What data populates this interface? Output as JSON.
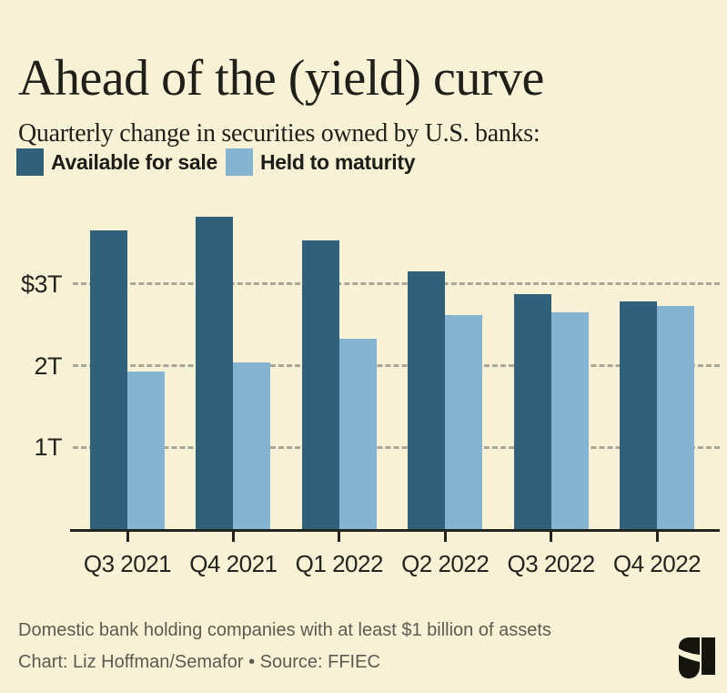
{
  "header": {
    "title": "Ahead of the (yield) curve",
    "subtitle": "Quarterly change in securities owned by U.S. banks:"
  },
  "chart_data": {
    "type": "bar",
    "categories": [
      "Q3 2021",
      "Q4 2021",
      "Q1 2022",
      "Q2 2022",
      "Q3 2022",
      "Q4 2022"
    ],
    "series": [
      {
        "name": "Available for sale",
        "color": "#31617a",
        "values": [
          3.66,
          3.82,
          3.53,
          3.15,
          2.88,
          2.79
        ]
      },
      {
        "name": "Held to maturity",
        "color": "#84b4d1",
        "values": [
          1.93,
          2.04,
          2.33,
          2.62,
          2.65,
          2.73
        ]
      }
    ],
    "unit": "trillions of U.S. dollars",
    "y_ticks": [
      {
        "value": 3,
        "label": "$3T"
      },
      {
        "value": 2,
        "label": "2T"
      },
      {
        "value": 1,
        "label": "1T"
      }
    ],
    "ylim": [
      0,
      4
    ],
    "grid": "dashed-horizontal",
    "legend_position": "top-left"
  },
  "footer": {
    "note": "Domestic bank holding companies with at least $1 billion of assets",
    "credit": "Chart: Liz Hoffman/Semafor • Source: FFIEC",
    "logo": "semafor-logomark"
  },
  "colors": {
    "background": "#f7f2d6",
    "available_for_sale": "#31617a",
    "held_to_maturity": "#84b4d1",
    "grid": "#a9a79a",
    "axis": "#24241e",
    "text": "#201f19",
    "muted_text": "#5b5a50"
  }
}
